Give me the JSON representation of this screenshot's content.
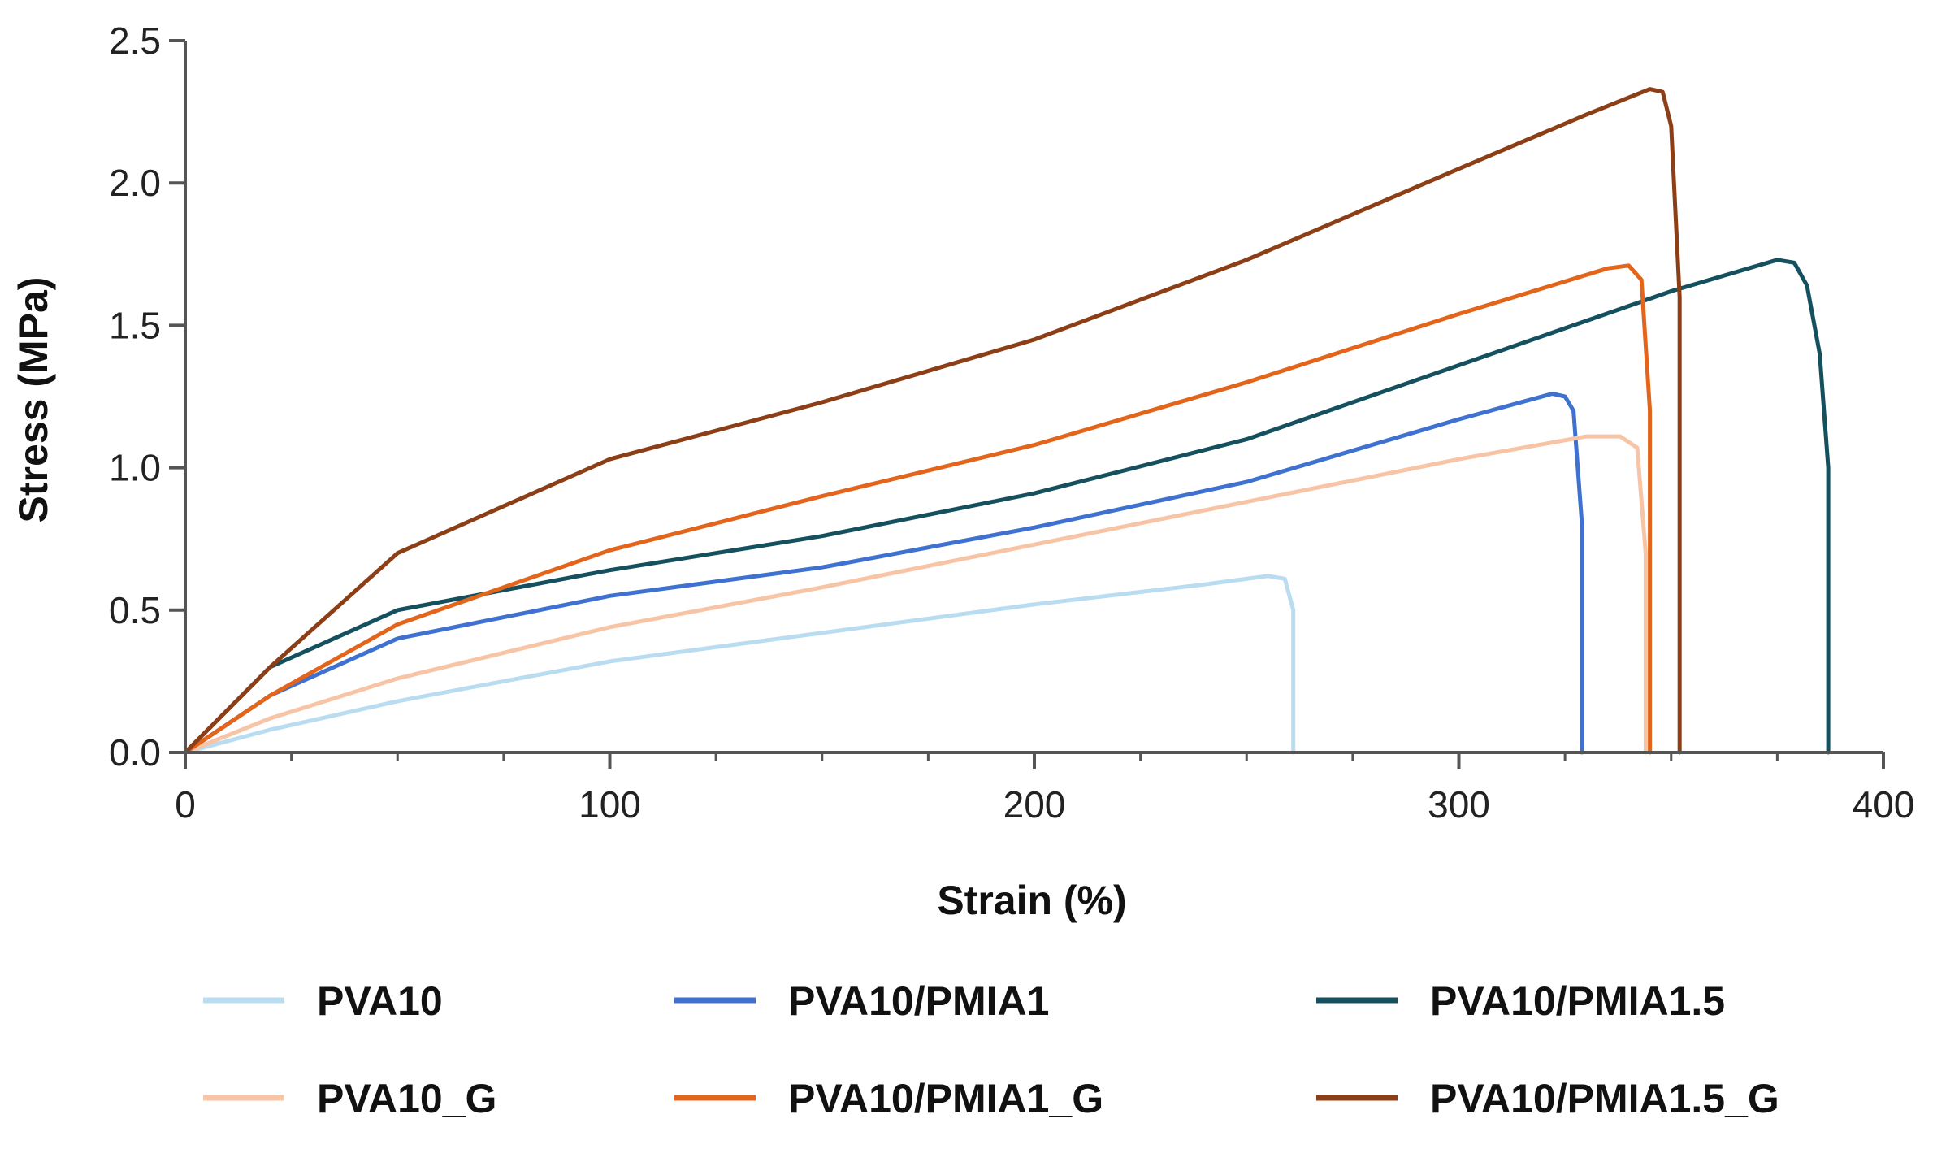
{
  "chart_data": {
    "type": "line",
    "title": "",
    "xlabel": "Strain (%)",
    "ylabel": "Stress (MPa)",
    "xlim": [
      0,
      400
    ],
    "ylim": [
      0,
      2.5
    ],
    "xticks": [
      0,
      100,
      200,
      300,
      400
    ],
    "xtick_labels": [
      "0",
      "100",
      "200",
      "300",
      "400"
    ],
    "yticks": [
      0,
      0.5,
      1.0,
      1.5,
      2.0,
      2.5
    ],
    "ytick_labels": [
      "0.0",
      "0.5",
      "1.0",
      "1.5",
      "2.0",
      "2.5"
    ],
    "grid": false,
    "legend_position": "bottom",
    "series": [
      {
        "name": "PVA10",
        "color": "#b9dcf0",
        "points": [
          [
            0,
            0
          ],
          [
            20,
            0.08
          ],
          [
            50,
            0.18
          ],
          [
            100,
            0.32
          ],
          [
            150,
            0.42
          ],
          [
            200,
            0.52
          ],
          [
            240,
            0.59
          ],
          [
            255,
            0.62
          ],
          [
            259,
            0.61
          ],
          [
            261,
            0.5
          ],
          [
            261,
            0.2
          ],
          [
            261,
            0
          ]
        ]
      },
      {
        "name": "PVA10/PMIA1",
        "color": "#3f72d0",
        "points": [
          [
            0,
            0
          ],
          [
            20,
            0.2
          ],
          [
            50,
            0.4
          ],
          [
            100,
            0.55
          ],
          [
            150,
            0.65
          ],
          [
            200,
            0.79
          ],
          [
            250,
            0.95
          ],
          [
            300,
            1.17
          ],
          [
            322,
            1.26
          ],
          [
            325,
            1.25
          ],
          [
            327,
            1.2
          ],
          [
            329,
            0.8
          ],
          [
            329,
            0
          ]
        ]
      },
      {
        "name": "PVA10/PMIA1.5",
        "color": "#14505e",
        "points": [
          [
            0,
            0
          ],
          [
            20,
            0.3
          ],
          [
            50,
            0.5
          ],
          [
            100,
            0.64
          ],
          [
            150,
            0.76
          ],
          [
            200,
            0.91
          ],
          [
            250,
            1.1
          ],
          [
            300,
            1.36
          ],
          [
            350,
            1.62
          ],
          [
            375,
            1.73
          ],
          [
            379,
            1.72
          ],
          [
            382,
            1.64
          ],
          [
            385,
            1.4
          ],
          [
            387,
            1.0
          ],
          [
            387,
            0.5
          ],
          [
            387,
            0
          ]
        ]
      },
      {
        "name": "PVA10_G",
        "color": "#f7c4a6",
        "points": [
          [
            0,
            0
          ],
          [
            20,
            0.12
          ],
          [
            50,
            0.26
          ],
          [
            100,
            0.44
          ],
          [
            150,
            0.58
          ],
          [
            200,
            0.73
          ],
          [
            250,
            0.88
          ],
          [
            300,
            1.03
          ],
          [
            330,
            1.11
          ],
          [
            338,
            1.11
          ],
          [
            342,
            1.07
          ],
          [
            344,
            0.7
          ],
          [
            344,
            0
          ]
        ]
      },
      {
        "name": "PVA10/PMIA1_G",
        "color": "#e3651c",
        "points": [
          [
            0,
            0
          ],
          [
            20,
            0.2
          ],
          [
            50,
            0.45
          ],
          [
            100,
            0.71
          ],
          [
            150,
            0.9
          ],
          [
            200,
            1.08
          ],
          [
            250,
            1.3
          ],
          [
            300,
            1.54
          ],
          [
            335,
            1.7
          ],
          [
            340,
            1.71
          ],
          [
            343,
            1.66
          ],
          [
            345,
            1.2
          ],
          [
            345,
            0
          ]
        ]
      },
      {
        "name": "PVA10/PMIA1.5_G",
        "color": "#8c3f16",
        "points": [
          [
            0,
            0
          ],
          [
            20,
            0.3
          ],
          [
            50,
            0.7
          ],
          [
            100,
            1.03
          ],
          [
            150,
            1.23
          ],
          [
            200,
            1.45
          ],
          [
            250,
            1.73
          ],
          [
            300,
            2.05
          ],
          [
            330,
            2.24
          ],
          [
            345,
            2.33
          ],
          [
            348,
            2.32
          ],
          [
            350,
            2.2
          ],
          [
            352,
            1.6
          ],
          [
            352,
            0.5
          ],
          [
            352,
            0
          ]
        ]
      }
    ]
  }
}
